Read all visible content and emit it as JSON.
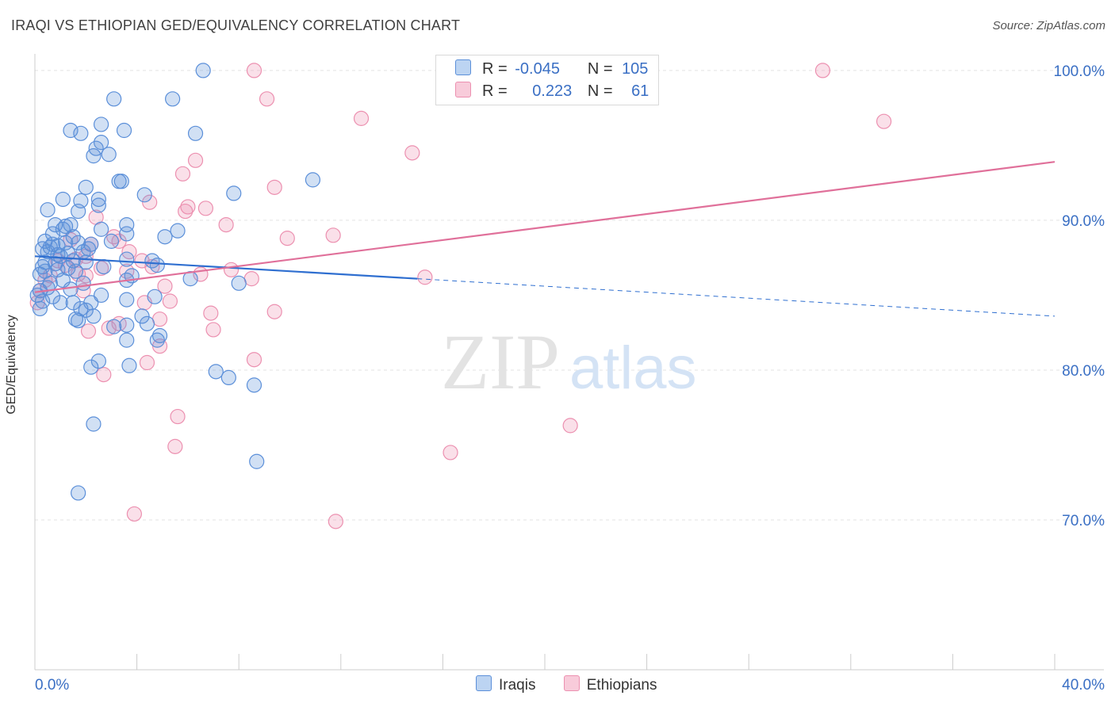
{
  "title": "IRAQI VS ETHIOPIAN GED/EQUIVALENCY CORRELATION CHART",
  "source": "Source: ZipAtlas.com",
  "watermark": {
    "zip": "ZIP",
    "atlas": "atlas"
  },
  "legend_top": [
    {
      "r_label": "R =",
      "r_value": "-0.045",
      "n_label": "N =",
      "n_value": "105"
    },
    {
      "r_label": "R =",
      "r_value": "0.223",
      "n_label": "N =",
      "n_value": "61"
    }
  ],
  "chart_data": {
    "type": "scatter",
    "title": "IRAQI VS ETHIOPIAN GED/EQUIVALENCY CORRELATION CHART",
    "xlabel": "",
    "ylabel": "GED/Equivalency",
    "xlim": [
      0,
      40
    ],
    "ylim": [
      60,
      101
    ],
    "x_tick_labels": [
      "0.0%",
      "40.0%"
    ],
    "y_ticks": [
      100,
      90,
      80,
      70
    ],
    "y_tick_labels": [
      "100.0%",
      "90.0%",
      "80.0%",
      "70.0%"
    ],
    "grid": true,
    "legend": "bottom",
    "colors": {
      "iraqis": "#5b8fd9",
      "ethiopians": "#ec90b0",
      "iraqis_line": "#2f6fd0",
      "ethiopians_line": "#e0709a",
      "tick_text": "#3a6fc4"
    },
    "series": [
      {
        "name": "Iraqis",
        "trend": {
          "x": [
            0,
            15
          ],
          "y": [
            87.6,
            86.1
          ],
          "dashed_to": [
            40,
            83.6
          ]
        },
        "points": [
          [
            6.6,
            100
          ],
          [
            3.1,
            98.1
          ],
          [
            5.4,
            98.1
          ],
          [
            2.6,
            96.4
          ],
          [
            1.4,
            96.0
          ],
          [
            3.5,
            96.0
          ],
          [
            1.8,
            95.8
          ],
          [
            6.3,
            95.8
          ],
          [
            2.6,
            95.2
          ],
          [
            2.4,
            94.8
          ],
          [
            2.9,
            94.4
          ],
          [
            2.3,
            94.3
          ],
          [
            3.3,
            92.6
          ],
          [
            3.4,
            92.6
          ],
          [
            10.9,
            92.7
          ],
          [
            2.0,
            92.2
          ],
          [
            4.3,
            91.7
          ],
          [
            7.8,
            91.8
          ],
          [
            1.1,
            91.4
          ],
          [
            1.8,
            91.3
          ],
          [
            2.5,
            91.4
          ],
          [
            2.5,
            91.0
          ],
          [
            0.5,
            90.7
          ],
          [
            1.7,
            90.6
          ],
          [
            0.8,
            89.7
          ],
          [
            1.2,
            89.6
          ],
          [
            1.4,
            89.7
          ],
          [
            3.6,
            89.7
          ],
          [
            1.1,
            89.4
          ],
          [
            2.6,
            89.4
          ],
          [
            5.6,
            89.3
          ],
          [
            0.7,
            89.1
          ],
          [
            1.5,
            88.9
          ],
          [
            3.6,
            89.1
          ],
          [
            5.1,
            88.9
          ],
          [
            0.4,
            88.6
          ],
          [
            0.7,
            88.4
          ],
          [
            1.7,
            88.5
          ],
          [
            2.2,
            88.4
          ],
          [
            0.3,
            88.1
          ],
          [
            0.6,
            88.2
          ],
          [
            0.9,
            88.3
          ],
          [
            0.5,
            87.9
          ],
          [
            0.9,
            87.7
          ],
          [
            1.3,
            87.8
          ],
          [
            1.0,
            87.6
          ],
          [
            1.5,
            87.3
          ],
          [
            2.0,
            87.2
          ],
          [
            3.6,
            87.4
          ],
          [
            4.6,
            87.3
          ],
          [
            4.8,
            87.0
          ],
          [
            0.4,
            86.6
          ],
          [
            0.9,
            86.7
          ],
          [
            1.6,
            86.6
          ],
          [
            3.8,
            86.3
          ],
          [
            1.1,
            86.0
          ],
          [
            1.9,
            85.8
          ],
          [
            3.6,
            86.0
          ],
          [
            6.1,
            86.1
          ],
          [
            8.0,
            85.8
          ],
          [
            0.2,
            85.3
          ],
          [
            0.5,
            85.5
          ],
          [
            2.6,
            85.0
          ],
          [
            4.7,
            84.9
          ],
          [
            0.3,
            84.6
          ],
          [
            1.0,
            84.5
          ],
          [
            1.5,
            84.5
          ],
          [
            1.8,
            84.1
          ],
          [
            2.0,
            84.0
          ],
          [
            2.2,
            84.5
          ],
          [
            3.6,
            84.7
          ],
          [
            4.2,
            83.6
          ],
          [
            1.6,
            83.4
          ],
          [
            1.7,
            83.3
          ],
          [
            2.3,
            83.6
          ],
          [
            3.1,
            82.9
          ],
          [
            3.6,
            83.0
          ],
          [
            4.4,
            83.1
          ],
          [
            4.9,
            82.3
          ],
          [
            3.6,
            82.0
          ],
          [
            4.8,
            82.0
          ],
          [
            2.5,
            80.6
          ],
          [
            2.2,
            80.2
          ],
          [
            3.7,
            80.3
          ],
          [
            7.1,
            79.9
          ],
          [
            7.6,
            79.5
          ],
          [
            8.6,
            79.0
          ],
          [
            2.3,
            76.4
          ],
          [
            8.7,
            73.9
          ],
          [
            1.7,
            71.8
          ],
          [
            0.2,
            86.4
          ],
          [
            0.1,
            85.0
          ],
          [
            0.6,
            85.8
          ],
          [
            1.3,
            86.8
          ],
          [
            2.1,
            88.1
          ],
          [
            0.8,
            87.1
          ],
          [
            1.2,
            88.5
          ],
          [
            0.4,
            87.2
          ],
          [
            1.9,
            87.9
          ],
          [
            3.0,
            88.6
          ],
          [
            0.2,
            84.1
          ],
          [
            0.7,
            84.9
          ],
          [
            1.4,
            85.4
          ],
          [
            2.7,
            86.9
          ],
          [
            0.3,
            86.9
          ]
        ]
      },
      {
        "name": "Ethiopians",
        "trend": {
          "x": [
            0,
            40
          ],
          "y": [
            85.2,
            93.9
          ]
        },
        "points": [
          [
            8.6,
            100
          ],
          [
            30.9,
            100
          ],
          [
            9.1,
            98.1
          ],
          [
            12.8,
            96.8
          ],
          [
            33.3,
            96.6
          ],
          [
            14.8,
            94.5
          ],
          [
            6.3,
            94.0
          ],
          [
            5.8,
            93.1
          ],
          [
            9.4,
            92.2
          ],
          [
            4.5,
            91.2
          ],
          [
            6.0,
            90.9
          ],
          [
            6.7,
            90.8
          ],
          [
            5.9,
            90.6
          ],
          [
            2.4,
            90.2
          ],
          [
            7.5,
            89.7
          ],
          [
            11.7,
            89.0
          ],
          [
            3.1,
            88.9
          ],
          [
            9.9,
            88.8
          ],
          [
            3.3,
            88.6
          ],
          [
            1.4,
            88.7
          ],
          [
            2.2,
            88.4
          ],
          [
            3.7,
            87.9
          ],
          [
            2.0,
            87.6
          ],
          [
            1.6,
            87.4
          ],
          [
            4.2,
            87.3
          ],
          [
            0.9,
            87.3
          ],
          [
            7.7,
            86.7
          ],
          [
            4.6,
            86.9
          ],
          [
            2.6,
            86.8
          ],
          [
            3.6,
            86.6
          ],
          [
            6.5,
            86.4
          ],
          [
            8.5,
            86.1
          ],
          [
            15.3,
            86.2
          ],
          [
            1.7,
            86.4
          ],
          [
            0.4,
            86.0
          ],
          [
            5.1,
            85.6
          ],
          [
            1.9,
            85.3
          ],
          [
            0.2,
            85.3
          ],
          [
            5.3,
            84.6
          ],
          [
            4.3,
            84.5
          ],
          [
            0.1,
            84.5
          ],
          [
            9.4,
            83.9
          ],
          [
            6.9,
            83.8
          ],
          [
            4.9,
            83.4
          ],
          [
            3.3,
            83.1
          ],
          [
            2.9,
            82.8
          ],
          [
            7.0,
            82.7
          ],
          [
            2.1,
            82.6
          ],
          [
            4.9,
            81.6
          ],
          [
            8.6,
            80.7
          ],
          [
            4.4,
            80.5
          ],
          [
            2.7,
            79.7
          ],
          [
            5.6,
            76.9
          ],
          [
            21.0,
            76.3
          ],
          [
            5.5,
            74.9
          ],
          [
            16.3,
            74.5
          ],
          [
            3.9,
            70.4
          ],
          [
            11.8,
            69.9
          ],
          [
            1.2,
            87.0
          ],
          [
            0.6,
            86.3
          ],
          [
            2.0,
            86.3
          ]
        ]
      }
    ]
  }
}
